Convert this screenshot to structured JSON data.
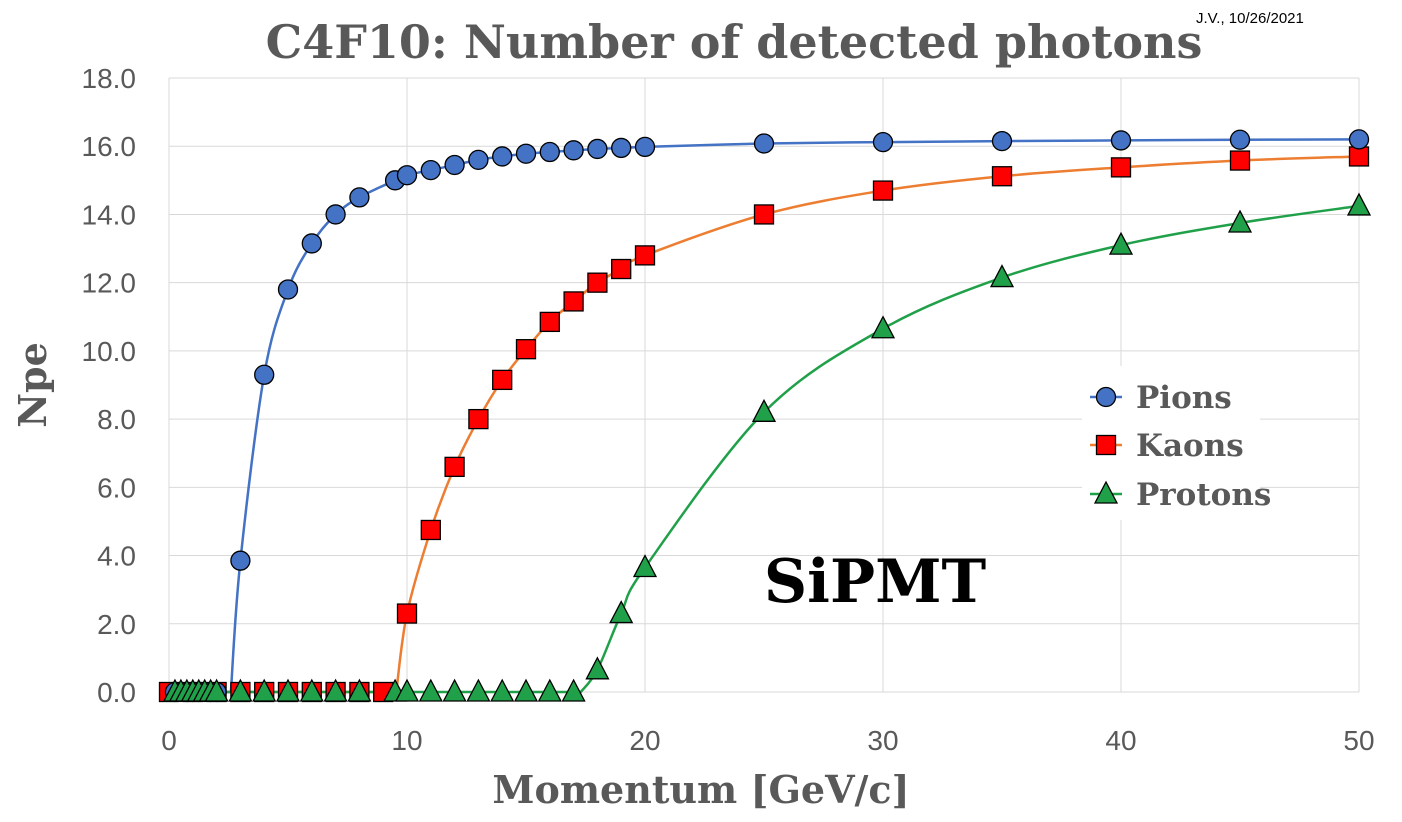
{
  "chart_data": {
    "type": "scatter",
    "title": "C4F10: Number of detected photons",
    "stamp": "J.V., 10/26/2021",
    "xlabel": "Momentum [GeV/c]",
    "ylabel": "Npe",
    "annotation": "SiPMT",
    "xlim": [
      0,
      50
    ],
    "ylim": [
      0,
      18
    ],
    "xticks": [
      0,
      10,
      20,
      30,
      40,
      50
    ],
    "yticks": [
      0,
      2,
      4,
      6,
      8,
      10,
      12,
      14,
      16,
      18
    ],
    "ytick_labels": [
      "0.0",
      "2.0",
      "4.0",
      "6.0",
      "8.0",
      "10.0",
      "12.0",
      "14.0",
      "16.0",
      "18.0"
    ],
    "grid": true,
    "legend_position": "right",
    "series": [
      {
        "name": "Pions",
        "marker": "circle",
        "color": "#4472c4",
        "line_color": "#4472c4",
        "threshold": 2.6,
        "x": [
          0.25,
          0.5,
          0.75,
          1,
          1.25,
          1.5,
          1.75,
          2,
          3,
          4,
          5,
          6,
          7,
          8,
          9.5,
          10,
          11,
          12,
          13,
          14,
          15,
          16,
          17,
          18,
          19,
          20,
          25,
          30,
          35,
          40,
          45,
          50
        ],
        "y": [
          0,
          0,
          0,
          0,
          0,
          0,
          0,
          0,
          3.85,
          9.3,
          11.8,
          13.15,
          14.0,
          14.5,
          15.0,
          15.15,
          15.3,
          15.45,
          15.6,
          15.7,
          15.78,
          15.83,
          15.88,
          15.92,
          15.95,
          15.98,
          16.08,
          16.12,
          16.15,
          16.17,
          16.19,
          16.2
        ]
      },
      {
        "name": "Kaons",
        "marker": "square",
        "color": "#ff0000",
        "line_color": "#ed7d31",
        "threshold": 9.55,
        "x": [
          0,
          1,
          2,
          3,
          4,
          5,
          6,
          7,
          8,
          9,
          10,
          11,
          12,
          13,
          14,
          15,
          16,
          17,
          18,
          19,
          20,
          25,
          30,
          35,
          40,
          45,
          50
        ],
        "y": [
          0,
          0,
          0,
          0,
          0,
          0,
          0,
          0,
          0,
          0,
          2.3,
          4.75,
          6.6,
          8.0,
          9.15,
          10.05,
          10.85,
          11.45,
          12.0,
          12.4,
          12.8,
          14.0,
          14.7,
          15.12,
          15.38,
          15.58,
          15.7
        ]
      },
      {
        "name": "Protons",
        "marker": "triangle",
        "color": "#21a04a",
        "line_color": "#21a04a",
        "threshold": 17.3,
        "x": [
          0.25,
          0.5,
          0.75,
          1,
          1.25,
          1.5,
          1.75,
          2,
          3,
          4,
          5,
          6,
          7,
          8,
          9.5,
          10,
          11,
          12,
          13,
          14,
          15,
          16,
          17,
          18,
          19,
          20,
          25,
          30,
          35,
          40,
          45,
          50
        ],
        "y": [
          0,
          0,
          0,
          0,
          0,
          0,
          0,
          0,
          0,
          0,
          0,
          0,
          0,
          0,
          0,
          0,
          0,
          0,
          0,
          0,
          0,
          0,
          0,
          0.65,
          2.3,
          3.65,
          8.2,
          10.65,
          12.15,
          13.1,
          13.75,
          14.25
        ]
      }
    ]
  }
}
